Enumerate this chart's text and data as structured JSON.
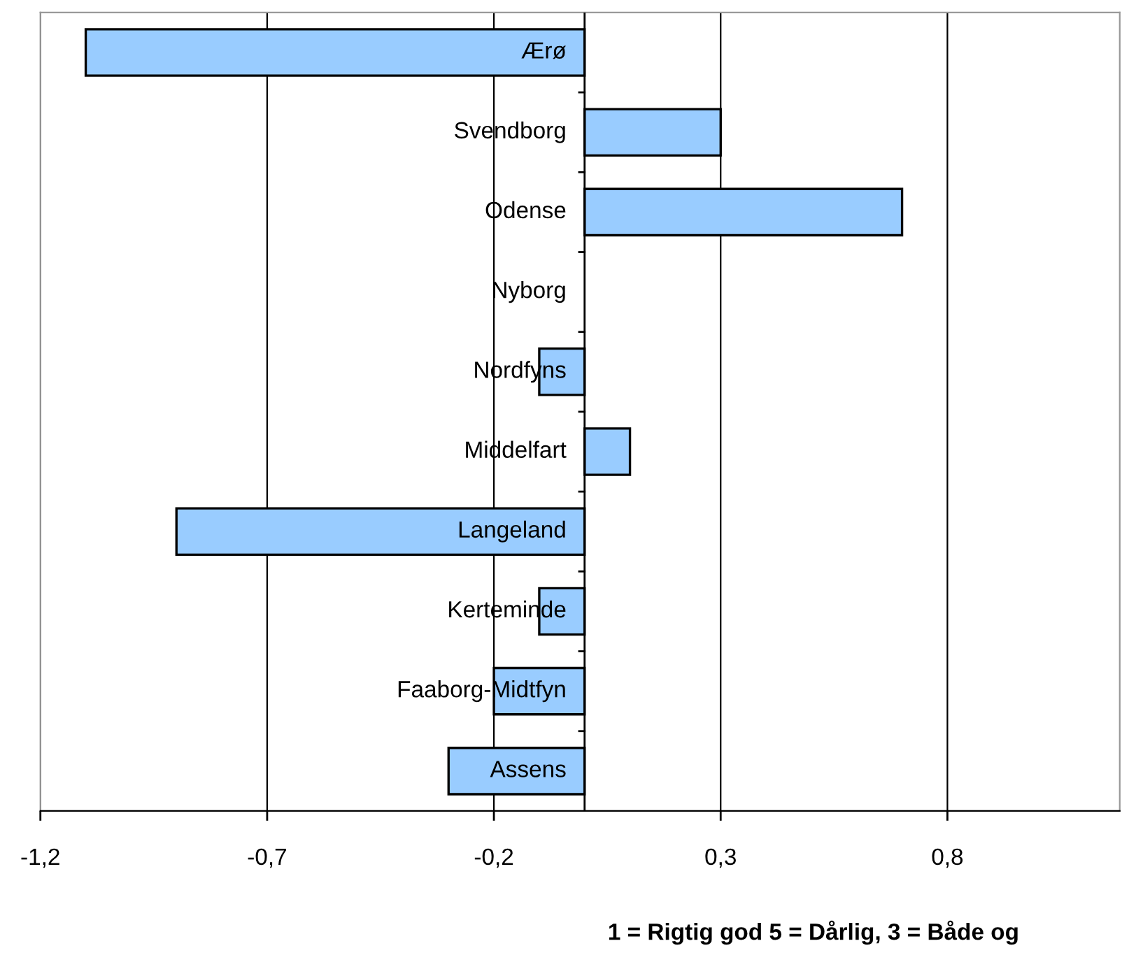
{
  "chart_data": {
    "type": "bar",
    "orientation": "horizontal",
    "categories": [
      "Ærø",
      "Svendborg",
      "Odense",
      "Nyborg",
      "Nordfyns",
      "Middelfart",
      "Langeland",
      "Kerteminde",
      "Faaborg-Midtfyn",
      "Assens"
    ],
    "values": [
      -1.1,
      0.3,
      0.7,
      0,
      -0.1,
      0.1,
      -0.9,
      -0.1,
      -0.2,
      -0.3
    ],
    "color": "#99ccff",
    "xlim": [
      -1.2,
      1.18
    ],
    "xticks": [
      {
        "value": -1.2,
        "label": "-1,2"
      },
      {
        "value": -0.7,
        "label": "-0,7"
      },
      {
        "value": -0.2,
        "label": "-0,2"
      },
      {
        "value": 0.3,
        "label": "0,3"
      },
      {
        "value": 0.8,
        "label": "0,8"
      }
    ],
    "grid": "x",
    "legend": false,
    "annotations": [
      "1 = Rigtig god 5 = Dårlig, 3 = Både og"
    ]
  }
}
